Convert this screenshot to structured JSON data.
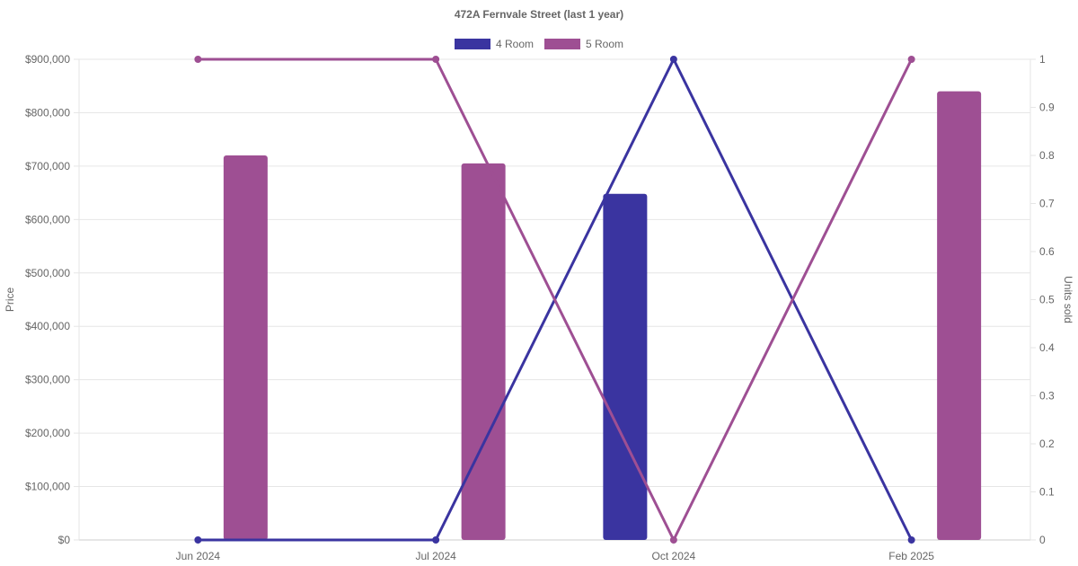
{
  "chart_data": {
    "type": "bar",
    "title": "472A Fernvale Street (last 1 year)",
    "categories": [
      "Jun 2024",
      "Jul 2024",
      "Oct 2024",
      "Feb 2025"
    ],
    "ylabel": "Price",
    "y2label": "Units sold",
    "ylim": [
      0,
      900000
    ],
    "y2lim": [
      0,
      1
    ],
    "y_ticks": [
      "$0",
      "$100,000",
      "$200,000",
      "$300,000",
      "$400,000",
      "$500,000",
      "$600,000",
      "$700,000",
      "$800,000",
      "$900,000"
    ],
    "y2_ticks": [
      "0",
      "0.1",
      "0.2",
      "0.3",
      "0.4",
      "0.5",
      "0.6",
      "0.7",
      "0.8",
      "0.9",
      "1"
    ],
    "grid": true,
    "legend_position": "top",
    "series": [
      {
        "name": "4 Room",
        "color": "#3a34a0",
        "price": [
          null,
          null,
          648000,
          null
        ],
        "units_sold": [
          0,
          0,
          1,
          0
        ]
      },
      {
        "name": "5 Room",
        "color": "#9e4f93",
        "price": [
          720000,
          705000,
          null,
          840000
        ],
        "units_sold": [
          1,
          1,
          0,
          1
        ]
      }
    ]
  }
}
